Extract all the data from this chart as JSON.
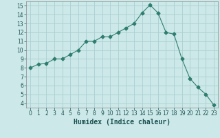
{
  "x": [
    0,
    1,
    2,
    3,
    4,
    5,
    6,
    7,
    8,
    9,
    10,
    11,
    12,
    13,
    14,
    15,
    16,
    17,
    18,
    19,
    20,
    21,
    22,
    23
  ],
  "y": [
    8.0,
    8.4,
    8.5,
    9.0,
    9.0,
    9.5,
    10.0,
    11.0,
    11.0,
    11.5,
    11.5,
    12.0,
    12.5,
    13.0,
    14.2,
    15.1,
    14.2,
    12.0,
    11.8,
    9.0,
    6.8,
    5.8,
    5.0,
    3.8
  ],
  "line_color": "#2e7d6e",
  "marker": "D",
  "marker_size": 2.5,
  "bg_color": "#cce8e8",
  "grid_color": "#aad0d0",
  "xlabel": "Humidex (Indice chaleur)",
  "ylim": [
    3.5,
    15.5
  ],
  "xlim": [
    -0.5,
    23.5
  ],
  "yticks": [
    4,
    5,
    6,
    7,
    8,
    9,
    10,
    11,
    12,
    13,
    14,
    15
  ],
  "xticks": [
    0,
    1,
    2,
    3,
    4,
    5,
    6,
    7,
    8,
    9,
    10,
    11,
    12,
    13,
    14,
    15,
    16,
    17,
    18,
    19,
    20,
    21,
    22,
    23
  ],
  "tick_fontsize": 5.5,
  "xlabel_fontsize": 7,
  "linewidth": 0.8
}
